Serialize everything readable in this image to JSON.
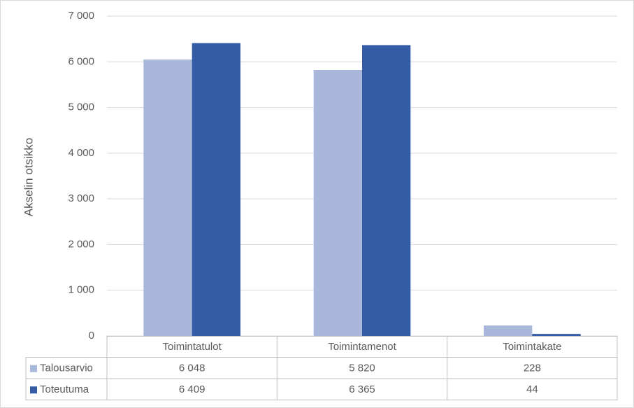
{
  "chart_data": {
    "type": "bar",
    "y_axis_label": "Akselin otsikko",
    "categories": [
      "Toimintatulot",
      "Toimintamenot",
      "Toimintakate"
    ],
    "series": [
      {
        "name": "Talousarvio",
        "color": "#a9b7db",
        "values": [
          6048,
          5820,
          228
        ],
        "value_labels": [
          "6 048",
          "5 820",
          "228"
        ]
      },
      {
        "name": "Toteutuma",
        "color": "#345ca5",
        "values": [
          6409,
          6365,
          44
        ],
        "value_labels": [
          "6 409",
          "6 365",
          "44"
        ]
      }
    ],
    "ylim": [
      0,
      7000
    ],
    "yticks": [
      0,
      {
        "value": 1000,
        "label": "1 000"
      },
      {
        "value": 2000,
        "label": "2 000"
      },
      {
        "value": 3000,
        "label": "3 000"
      },
      {
        "value": 4000,
        "label": "4 000"
      },
      {
        "value": 5000,
        "label": "5 000"
      },
      {
        "value": 6000,
        "label": "6 000"
      },
      {
        "value": 7000,
        "label": "7 000"
      }
    ],
    "grid": true,
    "data_table": true
  }
}
